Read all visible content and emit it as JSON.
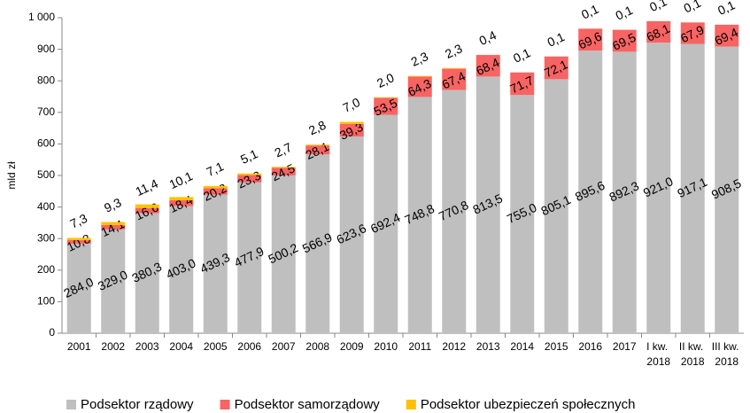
{
  "chart_data": {
    "type": "stacked_bar",
    "y_label": "mld zł",
    "categories": [
      "2001",
      "2002",
      "2003",
      "2004",
      "2005",
      "2006",
      "2007",
      "2008",
      "2009",
      "2010",
      "2011",
      "2012",
      "2013",
      "2014",
      "2015",
      "2016",
      "2017",
      "I kw. 2018",
      "II kw. 2018",
      "III kw. 2018"
    ],
    "series": [
      {
        "name": "Podsektor rządowy",
        "color": "#bfbfbf",
        "values": [
          284.0,
          329.0,
          380.3,
          403.0,
          439.3,
          477.9,
          500.2,
          566.9,
          623.6,
          692.4,
          748.8,
          770.8,
          813.5,
          755.0,
          805.1,
          895.6,
          892.3,
          921.0,
          917.1,
          908.5
        ],
        "value_labels": [
          "284,0",
          "329,0",
          "380,3",
          "403,0",
          "439,3",
          "477,9",
          "500,2",
          "566,9",
          "623,6",
          "692,4",
          "748,8",
          "770,8",
          "813,5",
          "755,0",
          "805,1",
          "895,6",
          "892,3",
          "921,0",
          "917,1",
          "908,5"
        ]
      },
      {
        "name": "Podsektor samorządowy",
        "color": "#f86363",
        "values": [
          10.8,
          14.1,
          16.6,
          18.4,
          20.2,
          23.3,
          24.5,
          28.1,
          39.3,
          53.5,
          64.3,
          67.4,
          68.4,
          71.7,
          72.1,
          69.6,
          69.5,
          68.1,
          67.9,
          69.4
        ],
        "value_labels": [
          "10,8",
          "14,1",
          "16,6",
          "18,4",
          "20,2",
          "23,3",
          "24,5",
          "28,1",
          "39,3",
          "53,5",
          "64,3",
          "67,4",
          "68,4",
          "71,7",
          "72,1",
          "69,6",
          "69,5",
          "68,1",
          "67,9",
          "69,4"
        ]
      },
      {
        "name": "Podsektor ubezpieczeń społecznych",
        "color": "#ffc000",
        "values": [
          7.3,
          9.3,
          11.4,
          10.1,
          7.1,
          5.1,
          2.7,
          2.8,
          7.0,
          2.0,
          2.3,
          2.3,
          0.4,
          0.1,
          0.1,
          0.1,
          0.1,
          0.1,
          0.1,
          0.1
        ],
        "value_labels": [
          "7,3",
          "9,3",
          "11,4",
          "10,1",
          "7,1",
          "5,1",
          "2,7",
          "2,8",
          "7,0",
          "2,0",
          "2,3",
          "2,3",
          "0,4",
          "0,1",
          "0,1",
          "0,1",
          "0,1",
          "0,1",
          "0,1",
          "0,1"
        ]
      }
    ],
    "ylim": [
      0,
      1000
    ],
    "yticks": [
      0,
      100,
      200,
      300,
      400,
      500,
      600,
      700,
      800,
      900,
      {
        "value": 1000,
        "label": "1 000"
      }
    ],
    "grid": false
  }
}
